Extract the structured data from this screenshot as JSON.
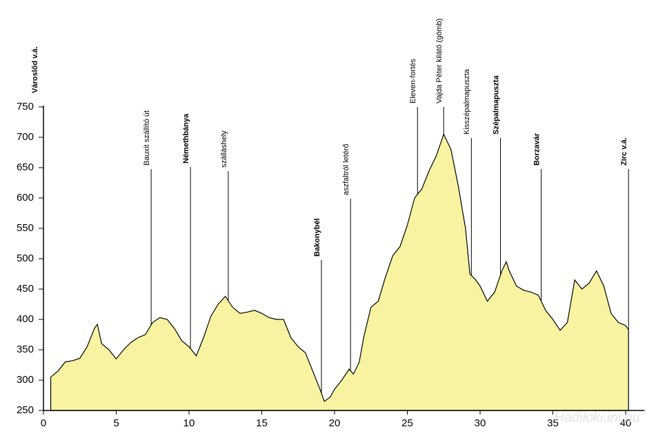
{
  "chart_data": {
    "type": "area",
    "x": [
      0.5,
      1.0,
      1.5,
      2.0,
      2.5,
      3.0,
      3.5,
      3.7,
      4.0,
      4.5,
      5.0,
      5.5,
      6.0,
      6.5,
      7.0,
      7.5,
      8.0,
      8.5,
      9.0,
      9.5,
      10.0,
      10.5,
      11.0,
      11.5,
      12.0,
      12.5,
      13.0,
      13.5,
      14.0,
      14.5,
      15.0,
      15.5,
      16.0,
      16.5,
      17.0,
      17.5,
      18.0,
      18.5,
      19.0,
      19.3,
      19.7,
      20.0,
      20.5,
      21.0,
      21.3,
      21.7,
      22.0,
      22.5,
      23.0,
      23.5,
      24.0,
      24.5,
      25.0,
      25.5,
      26.0,
      26.5,
      27.0,
      27.5,
      28.0,
      28.5,
      29.0,
      29.3,
      29.7,
      30.0,
      30.5,
      31.0,
      31.5,
      31.8,
      32.0,
      32.5,
      33.0,
      33.5,
      34.0,
      34.5,
      35.0,
      35.5,
      36.0,
      36.5,
      37.0,
      37.5,
      38.0,
      38.5,
      39.0,
      39.5,
      40.0,
      40.2
    ],
    "series": [
      {
        "color": "#f7f3a1",
        "values": [
          305,
          315,
          330,
          332,
          336,
          355,
          385,
          392,
          360,
          350,
          335,
          350,
          362,
          370,
          375,
          395,
          403,
          400,
          385,
          365,
          355,
          340,
          370,
          405,
          425,
          438,
          420,
          410,
          412,
          415,
          410,
          403,
          400,
          400,
          370,
          355,
          345,
          315,
          285,
          265,
          272,
          285,
          300,
          318,
          310,
          330,
          370,
          420,
          430,
          470,
          505,
          520,
          555,
          600,
          615,
          645,
          670,
          705,
          680,
          620,
          550,
          475,
          465,
          455,
          430,
          445,
          480,
          495,
          480,
          455,
          448,
          445,
          440,
          415,
          400,
          382,
          395,
          465,
          450,
          460,
          480,
          455,
          410,
          395,
          390,
          383
        ]
      }
    ],
    "xlim": [
      0,
      41.3
    ],
    "xticks": [
      0,
      5,
      10,
      15,
      20,
      25,
      30,
      35,
      40
    ],
    "ylim": [
      250,
      750
    ],
    "yticks": [
      250,
      300,
      350,
      400,
      450,
      500,
      550,
      600,
      650,
      700,
      750
    ],
    "annotations": [
      {
        "label": "Városlőd v.á.",
        "x": 0,
        "bold": true
      },
      {
        "label": "Bauxit szállító út",
        "x": 7.4,
        "bold": false
      },
      {
        "label": "Némethbánya",
        "x": 10.1,
        "bold": true
      },
      {
        "label": "szálláshely",
        "x": 12.7,
        "bold": false
      },
      {
        "label": "Bakonybél",
        "x": 19.1,
        "bold": true
      },
      {
        "label": "aszfaltról letérő",
        "x": 21.1,
        "bold": false
      },
      {
        "label": "Eleven-fortés",
        "x": 25.7,
        "bold": false
      },
      {
        "label": "Vajda Péter kilátó (gömb)",
        "x": 27.5,
        "bold": false
      },
      {
        "label": "Kisszépalmapuszta",
        "x": 29.4,
        "bold": false
      },
      {
        "label": "Szépalmapuszta",
        "x": 31.4,
        "bold": true
      },
      {
        "label": "Borzavár",
        "x": 34.2,
        "bold": true
      },
      {
        "label": "Zirc v.á.",
        "x": 40.2,
        "bold": true
      }
    ],
    "watermark": "Hadiloki.ini.hu"
  }
}
